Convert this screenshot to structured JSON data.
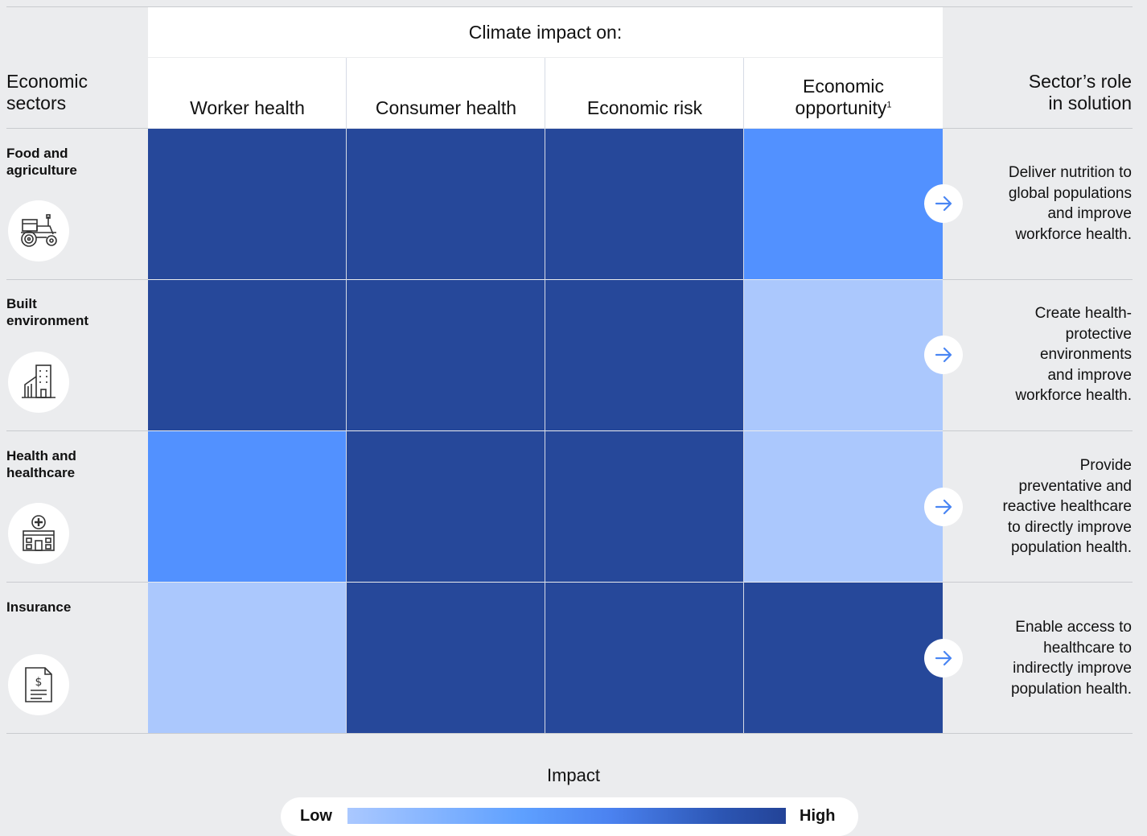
{
  "header": {
    "left_title": [
      "Economic",
      "sectors"
    ],
    "group_title": "Climate impact on:",
    "right_title": [
      "Sector’s role",
      "in solution"
    ]
  },
  "columns": [
    {
      "label": "Worker health"
    },
    {
      "label": "Consumer health"
    },
    {
      "label": "Economic risk"
    },
    {
      "label": "Economic",
      "label_line2": "opportunity",
      "sup": "1"
    }
  ],
  "colors": {
    "high": "#26489a",
    "medium": "#5291ff",
    "low": "#abc8fd",
    "arrow": "#4a86f3"
  },
  "rows": [
    {
      "label": [
        "Food and",
        "agriculture"
      ],
      "icon": "tractor-icon",
      "role": [
        "Deliver nutrition to",
        "global populations",
        "and improve",
        "workforce health."
      ]
    },
    {
      "label": [
        "Built",
        "environment"
      ],
      "icon": "buildings-icon",
      "role": [
        "Create health-",
        "protective",
        "environments",
        "and improve",
        "workforce health."
      ]
    },
    {
      "label": [
        "Health and",
        "healthcare"
      ],
      "icon": "hospital-icon",
      "role": [
        "Provide",
        "preventative and",
        "reactive healthcare",
        "to directly improve",
        "population health."
      ]
    },
    {
      "label": [
        "Insurance"
      ],
      "icon": "insurance-document-icon",
      "role": [
        "Enable access to",
        "healthcare to",
        "indirectly improve",
        "population health."
      ]
    }
  ],
  "chart_data": {
    "type": "heatmap",
    "title": "",
    "column_group_label": "Climate impact on:",
    "x_categories": [
      "Worker health",
      "Consumer health",
      "Economic risk",
      "Economic opportunity"
    ],
    "y_categories": [
      "Food and agriculture",
      "Built environment",
      "Health and healthcare",
      "Insurance"
    ],
    "scale": [
      "low",
      "medium",
      "high"
    ],
    "values": [
      [
        "high",
        "high",
        "high",
        "medium"
      ],
      [
        "high",
        "high",
        "high",
        "low"
      ],
      [
        "medium",
        "high",
        "high",
        "low"
      ],
      [
        "low",
        "high",
        "high",
        "high"
      ]
    ],
    "legend": {
      "title": "Impact",
      "min_label": "Low",
      "max_label": "High",
      "placement": "bottom-center"
    }
  }
}
